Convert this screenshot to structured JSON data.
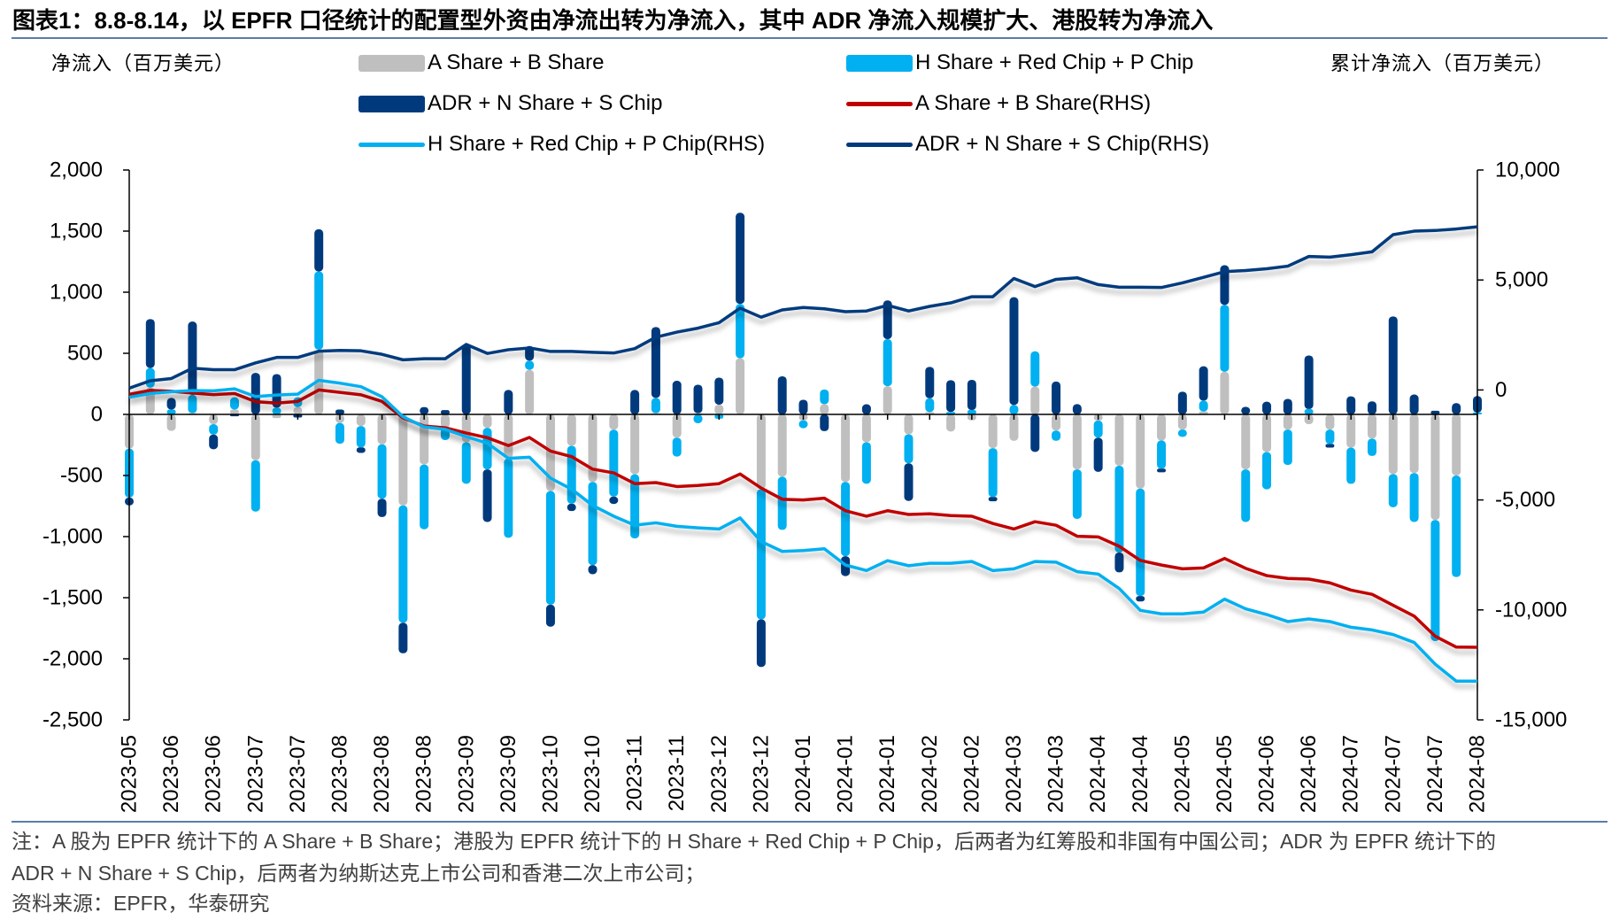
{
  "chart_data": {
    "type": "bar",
    "secondary_type": "line",
    "stacked": true,
    "title": "图表1：8.8-8.14，以 EPFR 口径统计的配置型外资由净流出转为净流入，其中 ADR 净流入规模扩大、港股转为净流入",
    "xlabel": "",
    "ylabel": "净流入（百万美元）",
    "y2label": "累计净流入（百万美元）",
    "ylim": [
      -2500,
      2000
    ],
    "y_ticks": [
      2000,
      1500,
      1000,
      500,
      0,
      -500,
      -1000,
      -1500,
      -2000,
      -2500
    ],
    "y_tick_labels": [
      "2,000",
      "1,500",
      "1,000",
      "500",
      "0",
      "-500",
      "-1,000",
      "-1,500",
      "-2,000",
      "-2,500"
    ],
    "y2lim": [
      -15000,
      10000
    ],
    "y2_ticks": [
      10000,
      5000,
      0,
      -5000,
      -10000,
      -15000
    ],
    "y2_tick_labels": [
      "10,000",
      "5,000",
      "0",
      "-5,000",
      "-10,000",
      "-15,000"
    ],
    "x_label_interval": 2,
    "x_tick_labels": [
      "2023-05",
      "2023-06",
      "2023-06",
      "2023-07",
      "2023-07",
      "2023-08",
      "2023-08",
      "2023-08",
      "2023-09",
      "2023-09",
      "2023-10",
      "2023-10",
      "2023-11",
      "2023-11",
      "2023-12",
      "2023-12",
      "2024-01",
      "2024-01",
      "2024-01",
      "2024-02",
      "2024-02",
      "2024-03",
      "2024-03",
      "2024-04",
      "2024-04",
      "2024-05",
      "2024-05",
      "2024-06",
      "2024-06",
      "2024-07",
      "2024-07",
      "2024-07",
      "2024-08"
    ],
    "grid": false,
    "legend_placement": "top",
    "series": [
      {
        "name": "A Share + B Share",
        "type": "bar",
        "axis": "left",
        "color": "#BFBFBF",
        "values": [
          -280,
          220,
          -135,
          10,
          -80,
          40,
          -375,
          -30,
          60,
          530,
          -70,
          -95,
          -245,
          -745,
          -410,
          -110,
          -228,
          -110,
          -360,
          365,
          -627,
          -257,
          -553,
          -125,
          -490,
          10,
          -190,
          10,
          80,
          460,
          -612,
          -510,
          -48,
          84,
          -553,
          -228,
          231,
          -163,
          19,
          -140,
          -48,
          -276,
          -216,
          228,
          -132,
          -450,
          -50,
          -420,
          -607,
          -213,
          -124,
          24,
          349,
          -450,
          -308,
          -124,
          -80,
          -124,
          -272,
          -198,
          -488,
          -480,
          -864,
          -500,
          0
        ]
      },
      {
        "name": "H Share + Red Chip + P Chip",
        "type": "bar",
        "axis": "left",
        "color": "#00B0F0",
        "values": [
          -400,
          160,
          40,
          150,
          -85,
          100,
          -420,
          55,
          80,
          640,
          -170,
          -175,
          -445,
          -960,
          -530,
          -100,
          -340,
          -340,
          -650,
          75,
          -930,
          -474,
          -680,
          -548,
          -525,
          125,
          -155,
          -72,
          -35,
          444,
          -1065,
          -435,
          -65,
          120,
          -607,
          -340,
          385,
          -237,
          113,
          20,
          36,
          -400,
          77,
          288,
          -84,
          -405,
          -140,
          -710,
          -879,
          -231,
          -60,
          89,
          547,
          -430,
          -305,
          -290,
          44,
          -118,
          -296,
          -142,
          -272,
          -400,
          -991,
          -831,
          15
        ]
      },
      {
        "name": "ADR + N Share + S Chip",
        "type": "bar",
        "axis": "left",
        "color": "#003A7D",
        "values": [
          -65,
          400,
          95,
          600,
          -120,
          -15,
          340,
          275,
          -25,
          345,
          40,
          -45,
          -150,
          -250,
          60,
          35,
          570,
          -430,
          200,
          120,
          -180,
          -60,
          -75,
          -60,
          200,
          580,
          275,
          233,
          221,
          746,
          -390,
          312,
          120,
          -137,
          -163,
          83,
          317,
          -308,
          257,
          260,
          247,
          -35,
          882,
          -307,
          269,
          84,
          -280,
          -163,
          -45,
          -30,
          186,
          281,
          325,
          62,
          104,
          127,
          438,
          -30,
          148,
          107,
          802,
          163,
          30,
          92,
          135
        ]
      },
      {
        "name": "A Share + B Share(RHS)",
        "type": "line",
        "axis": "right",
        "color": "#C00000",
        "values": [
          -200,
          -20,
          -60,
          -140,
          -210,
          -160,
          -530,
          -600,
          -520,
          0,
          -110,
          -220,
          -520,
          -1270,
          -1640,
          -1720,
          -1960,
          -2170,
          -2530,
          -2160,
          -2780,
          -3030,
          -3600,
          -3770,
          -4260,
          -4210,
          -4390,
          -4340,
          -4260,
          -3820,
          -4460,
          -4970,
          -5000,
          -4920,
          -5490,
          -5740,
          -5490,
          -5660,
          -5630,
          -5710,
          -5740,
          -6070,
          -6320,
          -5990,
          -6150,
          -6650,
          -6680,
          -7110,
          -7750,
          -7960,
          -8130,
          -8090,
          -7660,
          -8110,
          -8440,
          -8570,
          -8600,
          -8770,
          -9100,
          -9290,
          -9790,
          -10280,
          -11200,
          -11690,
          -11700
        ]
      },
      {
        "name": "H Share + Red Chip + P Chip(RHS)",
        "type": "line",
        "axis": "right",
        "color": "#00B0F0",
        "values": [
          -330,
          -160,
          -80,
          -30,
          -40,
          50,
          -300,
          -230,
          -190,
          440,
          310,
          150,
          -310,
          -1220,
          -1680,
          -1790,
          -2120,
          -2420,
          -3110,
          -3060,
          -4010,
          -4510,
          -5250,
          -5740,
          -6150,
          -6040,
          -6200,
          -6270,
          -6320,
          -5820,
          -6890,
          -7340,
          -7300,
          -7220,
          -7960,
          -8210,
          -7760,
          -7990,
          -7880,
          -7880,
          -7800,
          -8210,
          -8130,
          -7800,
          -7830,
          -8260,
          -8370,
          -9030,
          -10020,
          -10180,
          -10180,
          -10100,
          -9510,
          -9950,
          -10210,
          -10530,
          -10410,
          -10530,
          -10790,
          -10910,
          -11120,
          -11480,
          -12470,
          -13240,
          -13240
        ]
      },
      {
        "name": "ADR + N Share + S Chip(RHS)",
        "type": "line",
        "axis": "right",
        "color": "#003A7D",
        "values": [
          80,
          420,
          520,
          990,
          920,
          920,
          1230,
          1480,
          1480,
          1760,
          1800,
          1780,
          1620,
          1370,
          1420,
          1420,
          2070,
          1660,
          1830,
          1910,
          1750,
          1750,
          1710,
          1680,
          1880,
          2400,
          2630,
          2810,
          3060,
          3720,
          3310,
          3640,
          3750,
          3690,
          3560,
          3590,
          3850,
          3590,
          3800,
          3960,
          4240,
          4240,
          5070,
          4700,
          5030,
          5100,
          4790,
          4670,
          4670,
          4660,
          4870,
          5120,
          5380,
          5430,
          5510,
          5630,
          6070,
          6040,
          6150,
          6280,
          7060,
          7220,
          7250,
          7320,
          7420
        ]
      }
    ]
  },
  "footer": {
    "note_lines": [
      "注：A 股为 EPFR 统计下的 A Share + B Share；港股为 EPFR 统计下的 H Share + Red Chip + P Chip，后两者为红筹股和非国有中国公司；ADR 为 EPFR 统计下的",
      "ADR + N Share + S Chip，后两者为纳斯达克上市公司和香港二次上市公司；"
    ],
    "source": "资料来源：EPFR，华泰研究"
  }
}
